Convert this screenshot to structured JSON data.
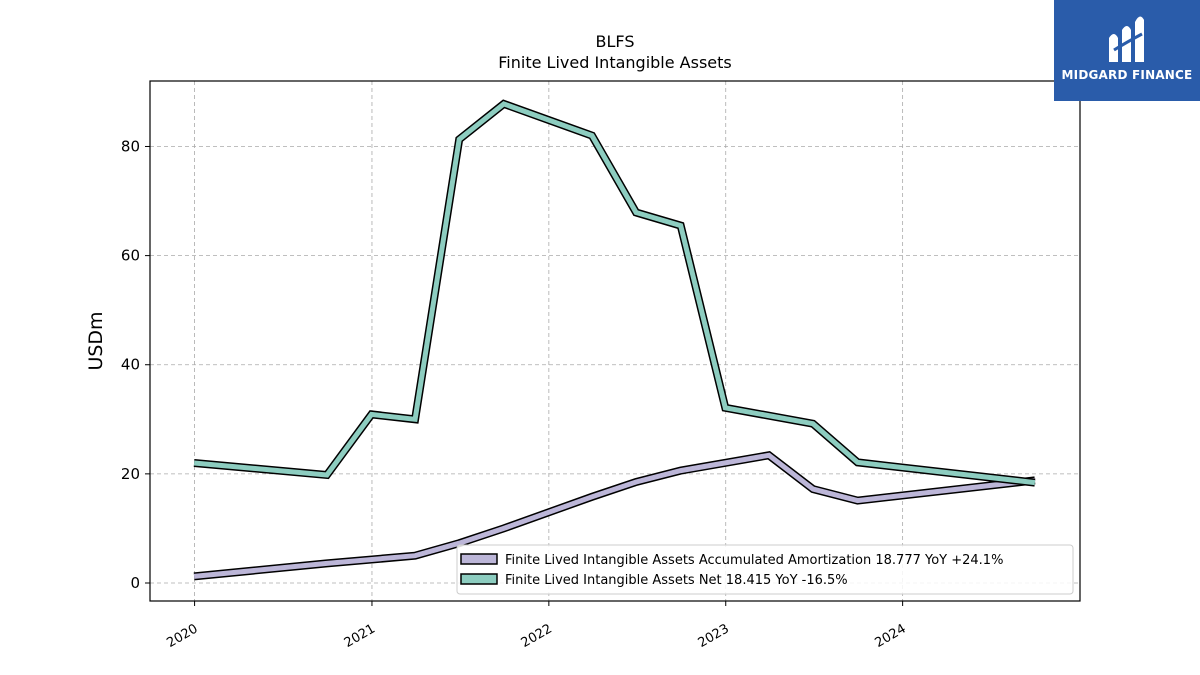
{
  "chart_data": {
    "type": "line",
    "title": "BLFS",
    "subtitle": "Finite Lived Intangible Assets",
    "xlabel": "",
    "ylabel": "USDm",
    "xlim": [
      "2019-10-01",
      "2025-01-01"
    ],
    "ylim": [
      -3.3,
      92.0
    ],
    "yticks": [
      0,
      20,
      40,
      60,
      80
    ],
    "xticks": [
      "2020",
      "2021",
      "2022",
      "2023",
      "2024"
    ],
    "grid": true,
    "legend_position": "lower-right",
    "series": [
      {
        "name": "Finite Lived Intangible Assets Accumulated Amortization",
        "legend_label": "Finite Lived Intangible Assets Accumulated Amortization  18.777 YoY +24.1%",
        "color": "#bcb6d8",
        "x": [
          "2019-12-31",
          "2020-09-30",
          "2021-03-31",
          "2021-06-30",
          "2021-09-30",
          "2022-03-31",
          "2022-06-30",
          "2022-09-30",
          "2023-03-31",
          "2023-06-30",
          "2023-09-30",
          "2024-09-30"
        ],
        "values": [
          1.2,
          3.6,
          5.0,
          7.3,
          10.0,
          15.8,
          18.5,
          20.6,
          23.4,
          17.2,
          15.1,
          18.8
        ]
      },
      {
        "name": "Finite Lived Intangible Assets Net",
        "legend_label": "Finite Lived Intangible Assets Net  18.415 YoY -16.5%",
        "color": "#8dcdc0",
        "x": [
          "2019-12-31",
          "2020-09-30",
          "2020-12-31",
          "2021-03-31",
          "2021-06-30",
          "2021-09-30",
          "2022-03-31",
          "2022-06-30",
          "2022-09-30",
          "2022-12-31",
          "2023-06-30",
          "2023-09-30",
          "2024-09-30"
        ],
        "values": [
          22.0,
          19.8,
          30.9,
          30.0,
          81.3,
          87.8,
          82.0,
          67.9,
          65.5,
          32.1,
          29.2,
          22.1,
          18.4
        ]
      }
    ]
  },
  "logo": {
    "text": "MIDGARD FINANCE",
    "background_color": "#2a5caa"
  }
}
